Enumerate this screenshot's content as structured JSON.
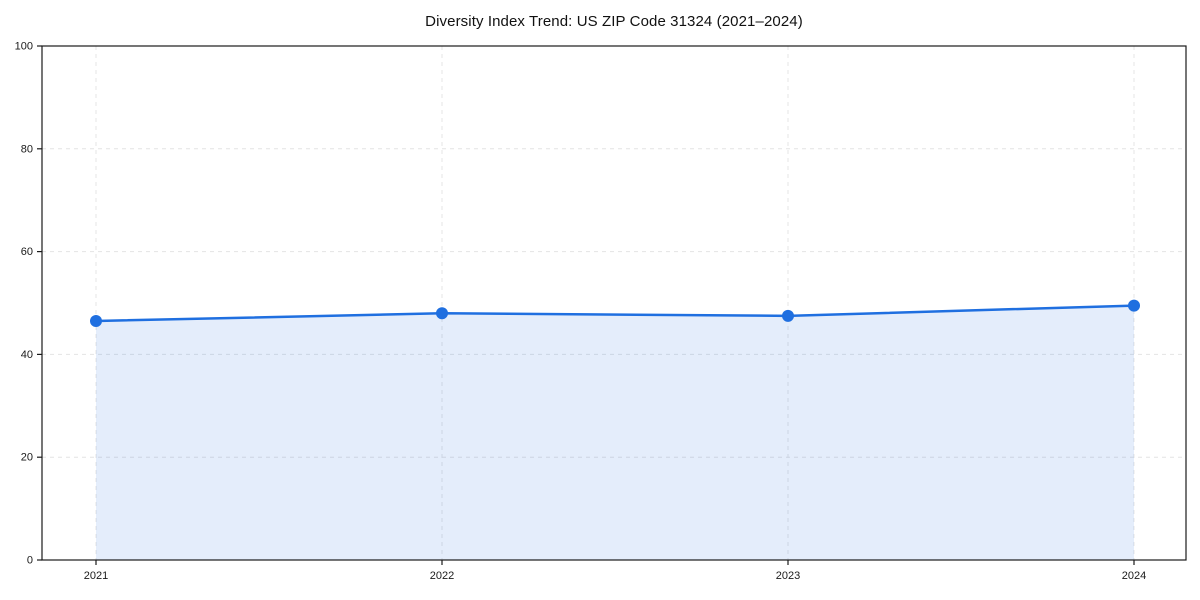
{
  "title": "Diversity Index Trend: US ZIP Code 31324 (2021–2024)",
  "colors": {
    "line": "#1f6fe0",
    "marker": "#1f6fe0",
    "fill": "#1f6fe0",
    "fill_opacity": "0.12",
    "grid": "#e4e4e4",
    "axis": "#1a1a1a",
    "text": "#1a1a1a",
    "background": "#ffffff"
  },
  "chart_data": {
    "type": "line",
    "title": "Diversity Index Trend: US ZIP Code 31324 (2021–2024)",
    "x": [
      2021,
      2022,
      2023,
      2024
    ],
    "categories": [
      "2021",
      "2022",
      "2023",
      "2024"
    ],
    "series": [
      {
        "name": "Diversity Index",
        "values": [
          46.5,
          48.0,
          47.5,
          49.5
        ]
      }
    ],
    "xlabel": "",
    "ylabel": "",
    "ylim": [
      0,
      100
    ],
    "yticks": [
      0,
      20,
      40,
      60,
      80,
      100
    ],
    "ytick_labels": [
      "0",
      "20",
      "40",
      "60",
      "80",
      "100"
    ],
    "grid": true,
    "grid_style": "dashed",
    "legend": "none",
    "marker": "circle",
    "area_fill": true
  }
}
